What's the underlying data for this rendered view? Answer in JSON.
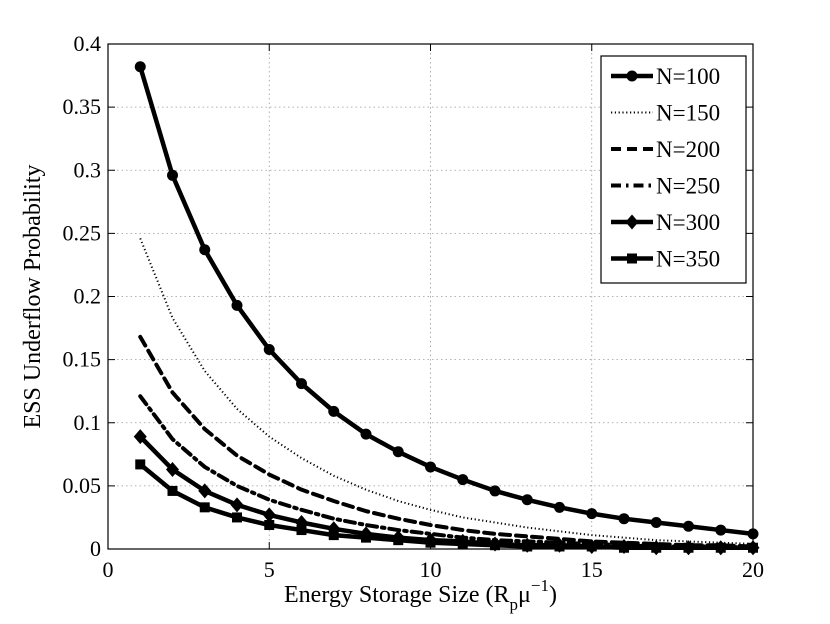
{
  "chart_data": {
    "type": "line",
    "title": "",
    "xlabel": "Energy Storage Size (R",
    "xlabel_sub": "p",
    "xlabel_mu": "μ",
    "xlabel_sup": "−1",
    "xlabel_close": ")",
    "ylabel": "ESS Underflow Probability",
    "xlim": [
      0,
      20
    ],
    "ylim": [
      0,
      0.4
    ],
    "grid": true,
    "legend_position": "top-right",
    "x_ticks": [
      0,
      5,
      10,
      15,
      20
    ],
    "x_tick_labels": [
      "0",
      "5",
      "10",
      "15",
      "20"
    ],
    "y_ticks": [
      0,
      0.05,
      0.1,
      0.15,
      0.2,
      0.25,
      0.3,
      0.35,
      0.4
    ],
    "y_tick_labels": [
      "0",
      "0.05",
      "0.1",
      "0.15",
      "0.2",
      "0.25",
      "0.3",
      "0.35",
      "0.4"
    ],
    "x": [
      1,
      2,
      3,
      4,
      5,
      6,
      7,
      8,
      9,
      10,
      11,
      12,
      13,
      14,
      15,
      16,
      17,
      18,
      19,
      20
    ],
    "series": [
      {
        "name": "N=100",
        "style": "solid",
        "marker": "circle",
        "values": [
          0.382,
          0.296,
          0.237,
          0.193,
          0.158,
          0.131,
          0.109,
          0.091,
          0.077,
          0.065,
          0.055,
          0.046,
          0.039,
          0.033,
          0.028,
          0.024,
          0.021,
          0.018,
          0.015,
          0.012
        ]
      },
      {
        "name": "N=150",
        "style": "dotted",
        "marker": "none",
        "values": [
          0.246,
          0.183,
          0.141,
          0.111,
          0.089,
          0.072,
          0.058,
          0.047,
          0.038,
          0.031,
          0.025,
          0.021,
          0.017,
          0.014,
          0.011,
          0.009,
          0.007,
          0.006,
          0.005,
          0.004
        ]
      },
      {
        "name": "N=200",
        "style": "dashed",
        "marker": "none",
        "values": [
          0.168,
          0.124,
          0.095,
          0.074,
          0.059,
          0.047,
          0.038,
          0.03,
          0.024,
          0.019,
          0.015,
          0.012,
          0.01,
          0.008,
          0.006,
          0.005,
          0.004,
          0.003,
          0.003,
          0.002
        ]
      },
      {
        "name": "N=250",
        "style": "dashdot",
        "marker": "none",
        "values": [
          0.121,
          0.087,
          0.065,
          0.05,
          0.039,
          0.031,
          0.024,
          0.019,
          0.015,
          0.012,
          0.009,
          0.007,
          0.006,
          0.005,
          0.004,
          0.003,
          0.002,
          0.002,
          0.002,
          0.001
        ]
      },
      {
        "name": "N=300",
        "style": "solid",
        "marker": "diamond",
        "values": [
          0.089,
          0.063,
          0.046,
          0.035,
          0.027,
          0.021,
          0.016,
          0.012,
          0.009,
          0.007,
          0.006,
          0.004,
          0.003,
          0.003,
          0.002,
          0.002,
          0.001,
          0.001,
          0.001,
          0.001
        ]
      },
      {
        "name": "N=350",
        "style": "solid",
        "marker": "square",
        "values": [
          0.067,
          0.046,
          0.033,
          0.025,
          0.019,
          0.015,
          0.011,
          0.009,
          0.007,
          0.005,
          0.004,
          0.003,
          0.002,
          0.002,
          0.002,
          0.001,
          0.001,
          0.001,
          0.001,
          0.001
        ]
      }
    ]
  }
}
